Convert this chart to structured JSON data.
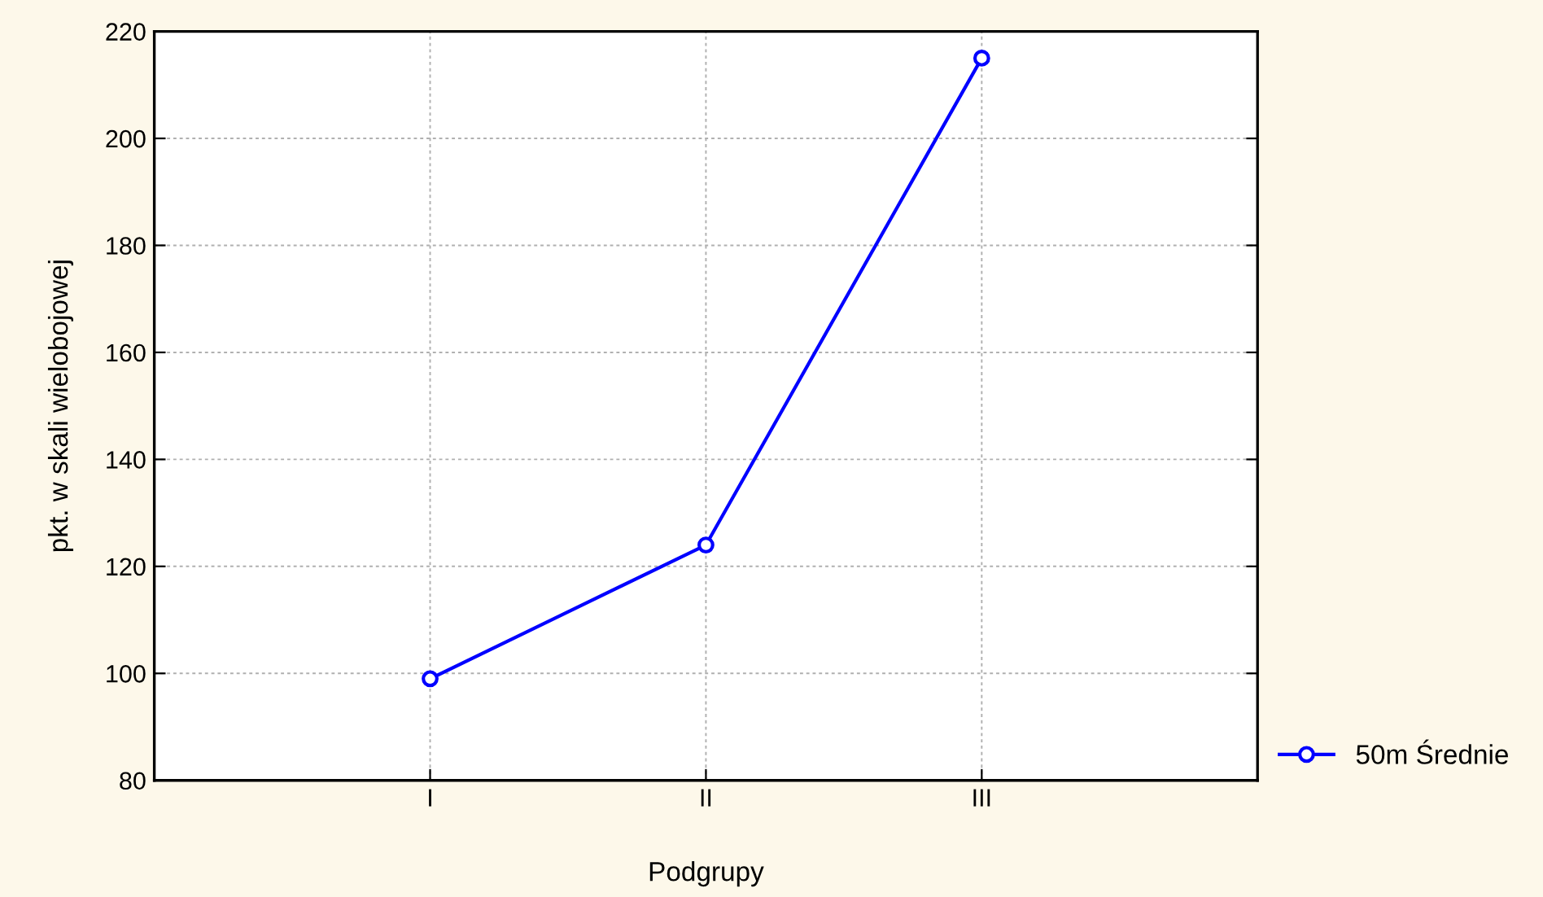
{
  "chart_data": {
    "type": "line",
    "xlabel": "Podgrupy",
    "ylabel": "pkt. w skali wielobojowej",
    "categories": [
      "I",
      "II",
      "III"
    ],
    "series": [
      {
        "name": "50m Średnie",
        "color": "#0000ff",
        "values": [
          99,
          124,
          215
        ]
      }
    ],
    "ylim": [
      80,
      220
    ],
    "yticks": [
      80,
      100,
      120,
      140,
      160,
      180,
      200,
      220
    ],
    "grid": true,
    "legend": "bottom right",
    "marker": "circle",
    "line_style": "solid"
  }
}
